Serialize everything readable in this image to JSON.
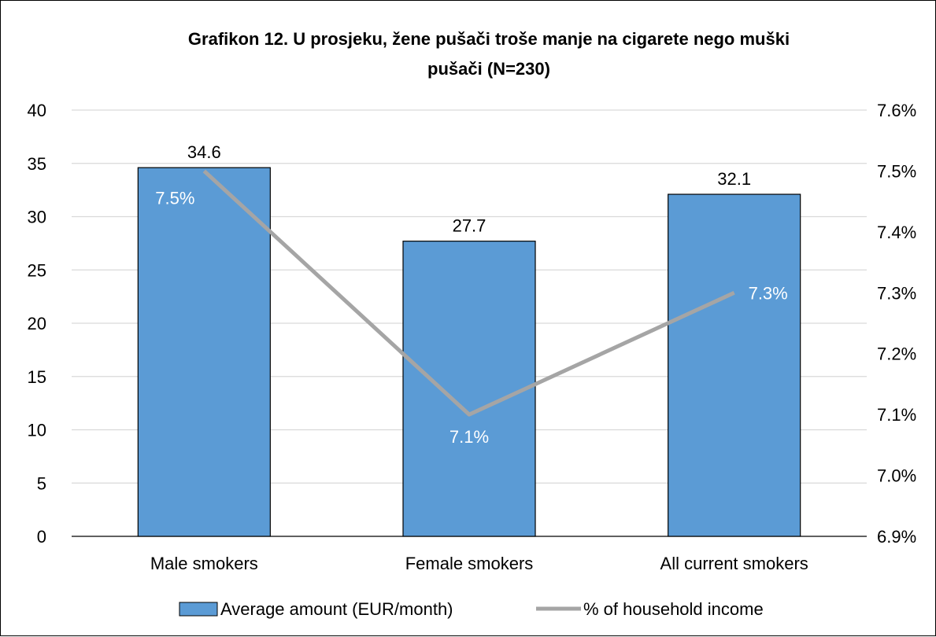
{
  "chart_data": {
    "type": "bar",
    "title_line1": "Grafikon 12. U prosjeku, žene pušači troše manje na cigarete nego muški",
    "title_line2": "pušači (N=230)",
    "categories": [
      "Male smokers",
      "Female smokers",
      "All current smokers"
    ],
    "series": [
      {
        "name": "Average amount (EUR/month)",
        "type": "bar",
        "axis": "left",
        "values": [
          34.6,
          27.7,
          32.1
        ],
        "labels": [
          "34.6",
          "27.7",
          "32.1"
        ],
        "color": "#5B9BD5"
      },
      {
        "name": "% of household income",
        "type": "line",
        "axis": "right",
        "values": [
          7.5,
          7.1,
          7.3
        ],
        "labels": [
          "7.5%",
          "7.1%",
          "7.3%"
        ],
        "color": "#A5A5A5"
      }
    ],
    "y_left": {
      "min": 0,
      "max": 40,
      "step": 5,
      "ticks": [
        "0",
        "5",
        "10",
        "15",
        "20",
        "25",
        "30",
        "35",
        "40"
      ]
    },
    "y_right": {
      "min": 6.9,
      "max": 7.6,
      "step": 0.1,
      "ticks": [
        "6.9%",
        "7.0%",
        "7.1%",
        "7.2%",
        "7.3%",
        "7.4%",
        "7.5%",
        "7.6%"
      ]
    },
    "grid": true,
    "legend_position": "bottom"
  }
}
